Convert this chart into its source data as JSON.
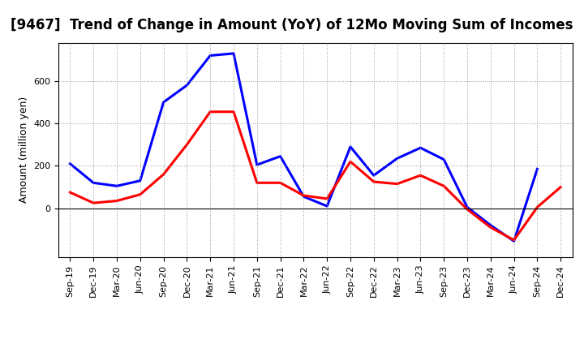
{
  "title": "[9467]  Trend of Change in Amount (YoY) of 12Mo Moving Sum of Incomes",
  "ylabel": "Amount (million yen)",
  "x_labels": [
    "Sep-19",
    "Dec-19",
    "Mar-20",
    "Jun-20",
    "Sep-20",
    "Dec-20",
    "Mar-21",
    "Jun-21",
    "Sep-21",
    "Dec-21",
    "Mar-22",
    "Jun-22",
    "Sep-22",
    "Dec-22",
    "Mar-23",
    "Jun-23",
    "Sep-23",
    "Dec-23",
    "Mar-24",
    "Jun-24",
    "Sep-24",
    "Dec-24"
  ],
  "ordinary_income": [
    210,
    120,
    105,
    130,
    500,
    580,
    720,
    730,
    205,
    245,
    55,
    10,
    290,
    155,
    235,
    285,
    230,
    5,
    -80,
    -155,
    185,
    null
  ],
  "net_income": [
    75,
    25,
    35,
    65,
    160,
    300,
    455,
    455,
    120,
    120,
    60,
    45,
    220,
    125,
    115,
    155,
    105,
    -5,
    -90,
    -150,
    5,
    100
  ],
  "ordinary_color": "#0000ff",
  "net_color": "#ff0000",
  "ylim_min": -230,
  "ylim_max": 780,
  "yticks": [
    0,
    200,
    400,
    600
  ],
  "grid_color": "#999999",
  "bg_color": "#ffffff",
  "title_fontsize": 12,
  "axis_fontsize": 9,
  "tick_fontsize": 8,
  "linewidth": 2.2
}
